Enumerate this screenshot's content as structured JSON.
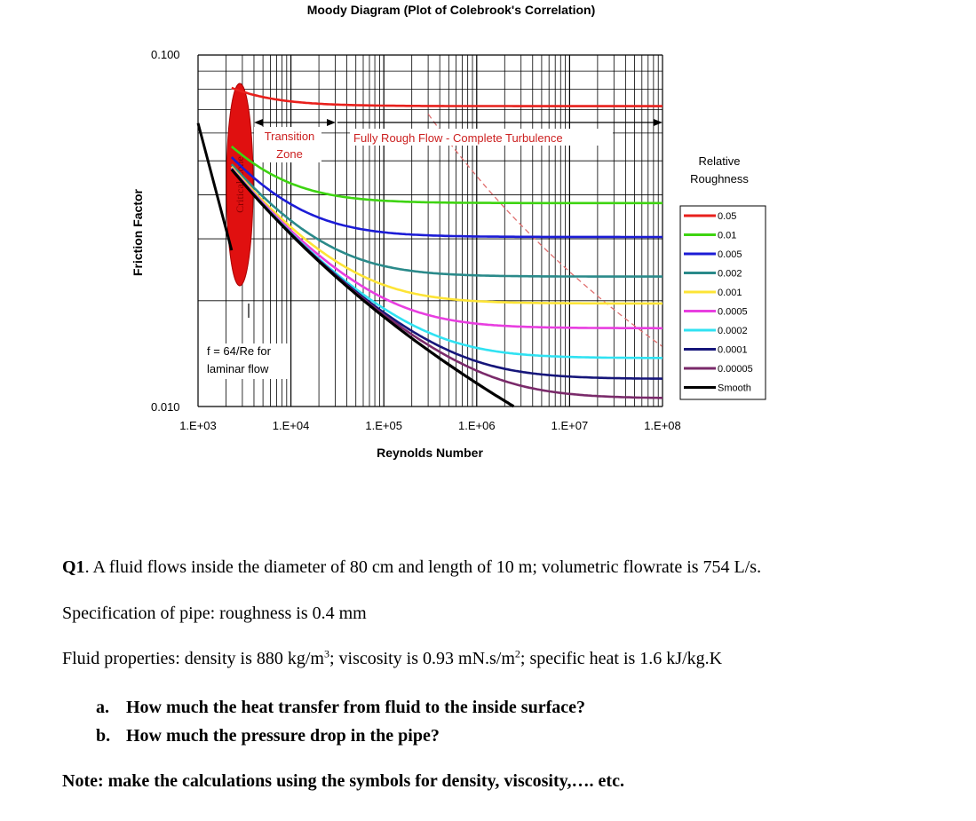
{
  "chart_data": {
    "type": "line",
    "title": "Moody Diagram (Plot of Colebrook's Correlation)",
    "xlabel": "Reynolds Number",
    "ylabel": "Friction Factor",
    "xscale": "log",
    "yscale": "log",
    "xlim": [
      1000,
      100000000
    ],
    "ylim": [
      0.01,
      0.1
    ],
    "x_ticks": [
      "1.E+03",
      "1.E+04",
      "1.E+05",
      "1.E+06",
      "1.E+07",
      "1.E+08"
    ],
    "y_ticks": [
      "0.100",
      "0.010"
    ],
    "grid": true,
    "legend_title": [
      "Relative",
      "Roughness"
    ],
    "legend_position": "right",
    "series": [
      {
        "name": "0.05",
        "color": "#e8201c",
        "roughness": 0.05
      },
      {
        "name": "0.01",
        "color": "#3ed411",
        "roughness": 0.01
      },
      {
        "name": "0.005",
        "color": "#1c1cd6",
        "roughness": 0.005
      },
      {
        "name": "0.002",
        "color": "#2a8a8a",
        "roughness": 0.002
      },
      {
        "name": "0.001",
        "color": "#fde436",
        "roughness": 0.001
      },
      {
        "name": "0.0005",
        "color": "#e83ee0",
        "roughness": 0.0005
      },
      {
        "name": "0.0002",
        "color": "#30e2f2",
        "roughness": 0.0002
      },
      {
        "name": "0.0001",
        "color": "#16167a",
        "roughness": 0.0001
      },
      {
        "name": "0.00005",
        "color": "#7a2a6a",
        "roughness": 5e-05
      },
      {
        "name": "Smooth",
        "color": "#000000",
        "roughness": 0
      }
    ],
    "laminar": {
      "label": "f = 64/Re for laminar flow",
      "label_lines": [
        "f = 64/Re for",
        "laminar flow"
      ],
      "x_range": [
        1000,
        2300
      ],
      "color": "#000000"
    },
    "annotations": {
      "critical_zone": "Critical Zone",
      "transition_zone": [
        "Transition",
        "Zone"
      ],
      "fully_rough": "Fully Rough Flow - Complete Turbulence"
    },
    "colors": {
      "critical_zone": "#e01010",
      "annotation_text": "#cc2020",
      "boundary_dash": "#e07070",
      "grid": "#000000"
    }
  },
  "question": {
    "q1_label": "Q1",
    "q1_text": ". A fluid flows inside the diameter of 80 cm and length of 10 m; volumetric flowrate is 754 L/s.",
    "spec": "Specification of pipe: roughness is 0.4 mm",
    "fluid_prefix": "Fluid properties: density is 880 kg/m",
    "fluid_exp1": "3",
    "fluid_mid": "; viscosity is 0.93 mN.s/m",
    "fluid_exp2": "2",
    "fluid_suffix": "; specific heat is 1.6 kJ/kg.K",
    "a_marker": "a.",
    "a_text": "How much the heat transfer from fluid to the inside surface?",
    "b_marker": "b.",
    "b_text": "How much the pressure drop in the pipe?",
    "note": "Note: make the calculations using the symbols for density, viscosity,…. etc."
  }
}
